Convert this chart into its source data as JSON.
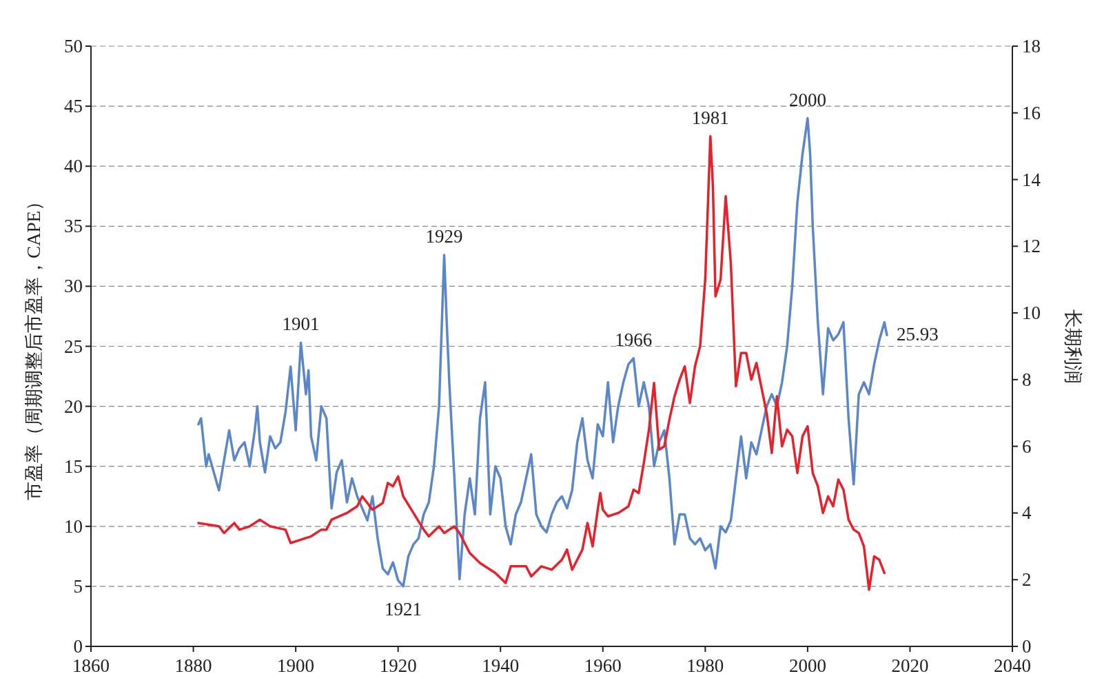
{
  "chart_data": {
    "type": "line",
    "ylabel": "市盈率（周期调整后市盈率，CAPE）",
    "y2label": "长期利润",
    "xlim": [
      1860,
      2040
    ],
    "xticks": [
      1860,
      1880,
      1900,
      1920,
      1940,
      1960,
      1980,
      2000,
      2020,
      2040
    ],
    "ylim": [
      0,
      50
    ],
    "yticks": [
      0,
      5,
      10,
      15,
      20,
      25,
      30,
      35,
      40,
      45,
      50
    ],
    "y2lim": [
      0,
      18
    ],
    "y2ticks": [
      0,
      2,
      4,
      6,
      8,
      10,
      12,
      14,
      16,
      18
    ],
    "grid": "y",
    "line_style": "solid",
    "series": [
      {
        "color": "#5b87c8",
        "x": [
          1881,
          1881.5,
          1882,
          1882.5,
          1883,
          1884,
          1885,
          1886,
          1887,
          1888,
          1889,
          1890,
          1891,
          1892,
          1892.5,
          1893,
          1894,
          1895,
          1896,
          1897,
          1898,
          1899,
          1900,
          1901,
          1902,
          1902.5,
          1903,
          1904,
          1905,
          1906,
          1907,
          1908,
          1909,
          1910,
          1911,
          1912,
          1913,
          1914,
          1915,
          1916,
          1917,
          1918,
          1919,
          1920,
          1921,
          1922,
          1923,
          1924,
          1925,
          1926,
          1927,
          1928,
          1929,
          1929.5,
          1930,
          1931,
          1932,
          1933,
          1934,
          1935,
          1936,
          1937,
          1938,
          1939,
          1940,
          1941,
          1942,
          1943,
          1944,
          1945,
          1946,
          1947,
          1948,
          1949,
          1950,
          1951,
          1952,
          1953,
          1954,
          1955,
          1956,
          1957,
          1958,
          1959,
          1960,
          1961,
          1962,
          1963,
          1964,
          1965,
          1966,
          1967,
          1968,
          1969,
          1970,
          1971,
          1972,
          1973,
          1974,
          1975,
          1976,
          1977,
          1978,
          1979,
          1980,
          1981,
          1982,
          1983,
          1984,
          1985,
          1986,
          1987,
          1988,
          1989,
          1990,
          1991,
          1992,
          1993,
          1994,
          1995,
          1996,
          1997,
          1998,
          1999,
          2000,
          2000.5,
          2001,
          2002,
          2003,
          2004,
          2005,
          2006,
          2007,
          2008,
          2009,
          2010,
          2011,
          2012,
          2013,
          2014,
          2015,
          2015.5
        ],
        "values": [
          18.5,
          19,
          17,
          15,
          16,
          14.5,
          13,
          15.5,
          18,
          15.5,
          16.5,
          17,
          15,
          18,
          20,
          17,
          14.5,
          17.5,
          16.5,
          17,
          19.5,
          23.3,
          18,
          25.3,
          21,
          23,
          17.5,
          15.5,
          20,
          19,
          11.5,
          14.5,
          15.5,
          12,
          14,
          12.5,
          11.5,
          10.5,
          12.5,
          9,
          6.5,
          6,
          7,
          5.5,
          5,
          7.5,
          8.5,
          9,
          11,
          12,
          15,
          20,
          32.6,
          27,
          22,
          14,
          5.6,
          11,
          14,
          11,
          19,
          22,
          11,
          15,
          14,
          10,
          8.5,
          11,
          12,
          14,
          16,
          11,
          10,
          9.5,
          11,
          12,
          12.5,
          11.5,
          13,
          17,
          19,
          15.5,
          14,
          18.5,
          17.5,
          22,
          17,
          20,
          22,
          23.5,
          24,
          20,
          22,
          20,
          15,
          17,
          18,
          14,
          8.5,
          11,
          11,
          9,
          8.5,
          9,
          8,
          8.5,
          6.5,
          10,
          9.5,
          10.5,
          14,
          17.5,
          14,
          17,
          16,
          18,
          20,
          21,
          20,
          22,
          25,
          30,
          37,
          41,
          44,
          41,
          35,
          27,
          21,
          26.5,
          25.5,
          26,
          27,
          19,
          13.5,
          21,
          22,
          21,
          23.5,
          25.5,
          27,
          25.93
        ]
      },
      {
        "axis": "y2",
        "color": "#e5222b",
        "x": [
          1881,
          1885,
          1886,
          1888,
          1889,
          1891,
          1893,
          1895,
          1898,
          1899,
          1901,
          1903,
          1905,
          1906,
          1907,
          1910,
          1912,
          1913,
          1915,
          1917,
          1918,
          1919,
          1920,
          1921,
          1923,
          1925,
          1926,
          1928,
          1929,
          1931,
          1932,
          1934,
          1936,
          1939,
          1941,
          1942,
          1945,
          1946,
          1948,
          1950,
          1952,
          1953,
          1954,
          1956,
          1957,
          1958,
          1959,
          1959.5,
          1960,
          1961,
          1963,
          1965,
          1966,
          1967,
          1968,
          1969,
          1970,
          1971,
          1972,
          1973,
          1974,
          1975,
          1976,
          1977,
          1978,
          1979,
          1980,
          1981,
          1981.5,
          1982,
          1983,
          1984,
          1985,
          1986,
          1987,
          1988,
          1989,
          1990,
          1992,
          1993,
          1994,
          1995,
          1996,
          1997,
          1998,
          1999,
          2000,
          2001,
          2002,
          2003,
          2004,
          2005,
          2006,
          2007,
          2008,
          2009,
          2010,
          2011,
          2012,
          2013,
          2014,
          2015
        ],
        "values": [
          3.7,
          3.6,
          3.4,
          3.7,
          3.5,
          3.6,
          3.8,
          3.6,
          3.5,
          3.1,
          3.2,
          3.3,
          3.5,
          3.5,
          3.8,
          4.0,
          4.2,
          4.5,
          4.1,
          4.3,
          4.9,
          4.8,
          5.1,
          4.5,
          4.0,
          3.5,
          3.3,
          3.6,
          3.4,
          3.6,
          3.4,
          2.8,
          2.5,
          2.2,
          1.9,
          2.4,
          2.4,
          2.1,
          2.4,
          2.3,
          2.6,
          2.9,
          2.3,
          2.9,
          3.7,
          3.0,
          4.1,
          4.6,
          4.1,
          3.9,
          4.0,
          4.2,
          4.7,
          4.6,
          5.5,
          6.5,
          7.9,
          5.9,
          6.0,
          6.8,
          7.5,
          8.0,
          8.4,
          7.3,
          8.4,
          9.0,
          11.0,
          15.3,
          13.8,
          10.5,
          11.0,
          13.5,
          11.5,
          7.8,
          8.8,
          8.8,
          8.0,
          8.5,
          7.0,
          5.8,
          7.5,
          6.0,
          6.5,
          6.3,
          5.2,
          6.3,
          6.6,
          5.2,
          4.8,
          4.0,
          4.5,
          4.2,
          5.0,
          4.7,
          3.8,
          3.5,
          3.4,
          3.0,
          1.7,
          2.7,
          2.6,
          2.2
        ]
      }
    ],
    "annotations": [
      {
        "text": "1901",
        "x": 1901,
        "y": 25.3
      },
      {
        "text": "1929",
        "x": 1929,
        "y": 32.6
      },
      {
        "text": "1921",
        "x": 1921,
        "y": 5
      },
      {
        "text": "1966",
        "x": 1966,
        "y": 24
      },
      {
        "text": "1981",
        "x": 1981,
        "y": 42.5
      },
      {
        "text": "2000",
        "x": 2000,
        "y": 44
      },
      {
        "text": "25.93",
        "x": 2015.5,
        "y": 25.93
      }
    ]
  }
}
